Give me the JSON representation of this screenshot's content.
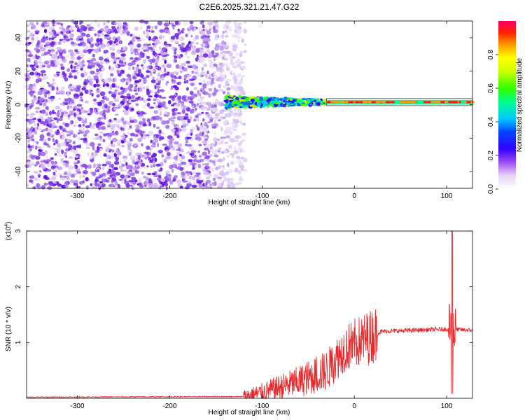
{
  "title": "C2E6.2025.321.21.47.G22",
  "chart_data": [
    {
      "type": "heatmap",
      "name": "spectrogram",
      "xlabel": "Height of straight line (km)",
      "ylabel": "Frequency (Hz)",
      "xlim": [
        -355,
        128
      ],
      "ylim": [
        -50,
        50
      ],
      "xticks": [
        -300,
        -200,
        -100,
        0,
        100
      ],
      "yticks": [
        -40,
        -20,
        0,
        20,
        40
      ],
      "colorbar": {
        "label": "Normalized spectral amplitude",
        "range": [
          0,
          1
        ],
        "ticks": [
          "0.0",
          "0.2",
          "0.4",
          "0.6",
          "0.8"
        ],
        "tick_values": [
          0.0,
          0.2,
          0.4,
          0.6,
          0.8
        ]
      },
      "signal_line": {
        "x_start": -30,
        "x_end": 128,
        "freq": 1.5
      },
      "noise_region_x_end": -118
    },
    {
      "type": "line",
      "name": "snr",
      "xlabel": "Height of straight line (km)",
      "ylabel": "SNR (10 * v/v)",
      "exponent_label": "(x10",
      "exponent_power": "4",
      "xlim": [
        -355,
        128
      ],
      "ylim": [
        0,
        3
      ],
      "xticks": [
        -300,
        -200,
        -100,
        0,
        100
      ],
      "yticks": [
        1,
        2,
        3
      ],
      "series_color": "#e8292c",
      "baseline": 0.02,
      "plateau": 1.22,
      "spike_x": 106,
      "spike_max": 3.0,
      "spike_min": 0.08,
      "key_points": [
        {
          "x": -355,
          "y": 0.02
        },
        {
          "x": -120,
          "y": 0.03
        },
        {
          "x": -100,
          "y": 0.1
        },
        {
          "x": -60,
          "y": 0.3
        },
        {
          "x": -30,
          "y": 0.5
        },
        {
          "x": -10,
          "y": 0.9
        },
        {
          "x": 10,
          "y": 1.05
        },
        {
          "x": 30,
          "y": 1.2
        },
        {
          "x": 100,
          "y": 1.24
        },
        {
          "x": 128,
          "y": 1.22
        }
      ]
    }
  ]
}
